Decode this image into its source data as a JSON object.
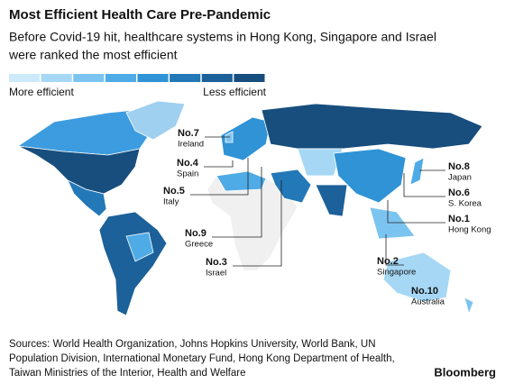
{
  "header": {
    "title": "Most Efficient Health Care Pre-Pandemic",
    "subtitle": [
      "Before Covid-19 hit, healthcare systems in Hong Kong, Singapore and Israel",
      "were ranked the most efficient"
    ]
  },
  "legend": {
    "colors": [
      "#cdeafb",
      "#a6d8f6",
      "#7cc4f0",
      "#4fabe6",
      "#2f93d6",
      "#2378b8",
      "#1c6199",
      "#174e7e"
    ],
    "low_label": "More efficient",
    "high_label": "Less efficient"
  },
  "annotations": [
    {
      "rank": "No.7",
      "country": "Ireland"
    },
    {
      "rank": "No.4",
      "country": "Spain"
    },
    {
      "rank": "No.5",
      "country": "Italy"
    },
    {
      "rank": "No.9",
      "country": "Greece"
    },
    {
      "rank": "No.3",
      "country": "Israel"
    },
    {
      "rank": "No.8",
      "country": "Japan"
    },
    {
      "rank": "No.6",
      "country": "S. Korea"
    },
    {
      "rank": "No.1",
      "country": "Hong Kong"
    },
    {
      "rank": "No.2",
      "country": "Singapore"
    },
    {
      "rank": "No.10",
      "country": "Australia"
    }
  ],
  "footer": {
    "sources": [
      "Sources: World Health Organization, Johns Hopkins University, World Bank, UN",
      "Population Division, International Monetary Fund, Hong Kong Department of Health,",
      "Taiwan Ministries of the Interior, Health and Welfare"
    ],
    "brand": "Bloomberg"
  }
}
